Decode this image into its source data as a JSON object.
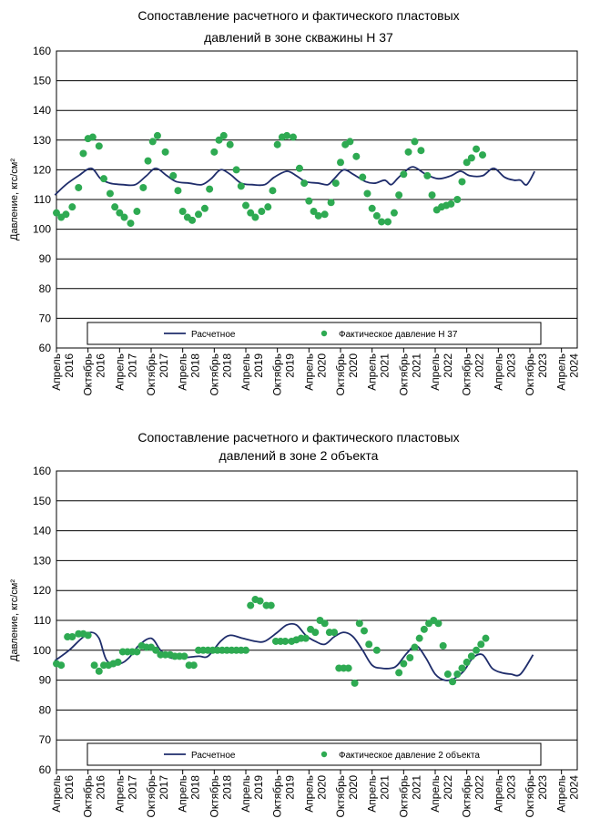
{
  "colors": {
    "line": "#1f2d6b",
    "points": "#2eaa52",
    "grid": "#000000"
  },
  "chart_data": [
    {
      "type": "line",
      "title": [
        "Сопоставление расчетного и фактического пластовых",
        "давлений в зоне скважины Н 37"
      ],
      "ylabel": "Давление, кгс/см²",
      "ylim": [
        60,
        160
      ],
      "yticks": [
        60,
        70,
        80,
        90,
        100,
        110,
        120,
        130,
        140,
        150,
        160
      ],
      "grid": true,
      "legend_position": "bottom",
      "xlim": [
        0,
        16.5
      ],
      "xticks": [
        {
          "x": 0,
          "label": [
            "Апрель",
            "2016"
          ]
        },
        {
          "x": 1,
          "label": [
            "Октябрь",
            "2016"
          ]
        },
        {
          "x": 2,
          "label": [
            "Апрель",
            "2017"
          ]
        },
        {
          "x": 3,
          "label": [
            "Октябрь",
            "2017"
          ]
        },
        {
          "x": 4,
          "label": [
            "Апрель",
            "2018"
          ]
        },
        {
          "x": 5,
          "label": [
            "Октябрь",
            "2018"
          ]
        },
        {
          "x": 6,
          "label": [
            "Апрель",
            "2019"
          ]
        },
        {
          "x": 7,
          "label": [
            "Октябрь",
            "2019"
          ]
        },
        {
          "x": 8,
          "label": [
            "Апрель",
            "2020"
          ]
        },
        {
          "x": 9,
          "label": [
            "Октябрь",
            "2020"
          ]
        },
        {
          "x": 10,
          "label": [
            "Апрель",
            "2021"
          ]
        },
        {
          "x": 11,
          "label": [
            "Октябрь",
            "2021"
          ]
        },
        {
          "x": 12,
          "label": [
            "Апрель",
            "2022"
          ]
        },
        {
          "x": 13,
          "label": [
            "Октябрь",
            "2022"
          ]
        },
        {
          "x": 14,
          "label": [
            "Апрель",
            "2023"
          ]
        },
        {
          "x": 15,
          "label": [
            "Октябрь",
            "2023"
          ]
        },
        {
          "x": 16,
          "label": [
            "Апрель",
            "2024"
          ]
        }
      ],
      "series": [
        {
          "name": "Расчетное",
          "kind": "line",
          "x": [
            -0.05,
            0.3,
            0.7,
            1.1,
            1.4,
            1.7,
            2.1,
            2.5,
            2.85,
            3.15,
            3.5,
            3.8,
            4.2,
            4.6,
            4.9,
            5.2,
            5.5,
            5.85,
            6.2,
            6.6,
            6.9,
            7.3,
            7.6,
            7.9,
            8.3,
            8.6,
            8.8,
            9.1,
            9.4,
            9.8,
            10.1,
            10.4,
            10.6,
            10.8,
            11.0,
            11.3,
            11.7,
            12.1,
            12.5,
            12.8,
            13.1,
            13.5,
            13.85,
            14.2,
            14.5,
            14.7,
            14.9,
            15.15
          ],
          "y": [
            111.5,
            115,
            118,
            120.5,
            117,
            115.5,
            115,
            115,
            118,
            120.5,
            118,
            116,
            115.5,
            115,
            117,
            120,
            118.5,
            115.5,
            115,
            115,
            117.5,
            119.5,
            118,
            116,
            115.5,
            115,
            117,
            120,
            118.5,
            116,
            115.5,
            116.5,
            115,
            117,
            119,
            121,
            118.5,
            117,
            118,
            119.5,
            118,
            118,
            120.5,
            117.5,
            116.5,
            116.5,
            115,
            119.5
          ]
        },
        {
          "name": "Фактическое давление Н 37",
          "kind": "scatter",
          "x": [
            0,
            0.15,
            0.3,
            0.5,
            0.7,
            0.85,
            1.0,
            1.15,
            1.35,
            1.5,
            1.7,
            1.85,
            2.0,
            2.15,
            2.35,
            2.55,
            2.75,
            2.9,
            3.05,
            3.2,
            3.45,
            3.7,
            3.85,
            4.0,
            4.15,
            4.3,
            4.5,
            4.7,
            4.85,
            5.0,
            5.15,
            5.3,
            5.5,
            5.7,
            5.85,
            6.0,
            6.15,
            6.3,
            6.5,
            6.7,
            6.85,
            7.0,
            7.15,
            7.3,
            7.5,
            7.7,
            7.85,
            8.0,
            8.15,
            8.3,
            8.5,
            8.7,
            8.85,
            9.0,
            9.15,
            9.3,
            9.5,
            9.7,
            9.85,
            10.0,
            10.15,
            10.3,
            10.5,
            10.7,
            10.85,
            11.0,
            11.15,
            11.35,
            11.55,
            11.75,
            11.9,
            12.05,
            12.2,
            12.35,
            12.5,
            12.7,
            12.85,
            13.0,
            13.15,
            13.3,
            13.5
          ],
          "y": [
            105.5,
            104,
            105,
            107.5,
            114,
            125.5,
            130.5,
            131,
            128,
            117,
            112,
            107.5,
            105.5,
            104,
            102,
            106,
            114,
            123,
            129.5,
            131.5,
            126,
            118,
            113,
            106,
            104,
            103,
            105,
            107,
            113.5,
            126,
            130,
            131.5,
            128.5,
            120,
            114.5,
            108,
            105.5,
            104,
            106,
            107.5,
            113,
            128.5,
            131,
            131.5,
            131,
            120.5,
            115.5,
            109.5,
            106,
            104.5,
            105,
            109,
            115.5,
            122.5,
            128.5,
            129.5,
            124.5,
            117.5,
            112,
            107,
            104.5,
            102.5,
            102.5,
            105.5,
            111.5,
            118.5,
            126,
            129.5,
            126.5,
            118,
            111.5,
            106.5,
            107.5,
            108,
            108.5,
            110,
            116,
            122.5,
            124,
            127,
            125
          ]
        }
      ]
    },
    {
      "type": "line",
      "title": [
        "Сопоставление расчетного и фактического пластовых",
        "давлений в зоне 2 объекта"
      ],
      "ylabel": "Давление, кгс/см²",
      "ylim": [
        60,
        160
      ],
      "yticks": [
        60,
        70,
        80,
        90,
        100,
        110,
        120,
        130,
        140,
        150,
        160
      ],
      "grid": true,
      "legend_position": "bottom",
      "xlim": [
        0,
        16.5
      ],
      "xticks": [
        {
          "x": 0,
          "label": [
            "Апрель",
            "2016"
          ]
        },
        {
          "x": 1,
          "label": [
            "Октябрь",
            "2016"
          ]
        },
        {
          "x": 2,
          "label": [
            "Апрель",
            "2017"
          ]
        },
        {
          "x": 3,
          "label": [
            "Октябрь",
            "2017"
          ]
        },
        {
          "x": 4,
          "label": [
            "Апрель",
            "2018"
          ]
        },
        {
          "x": 5,
          "label": [
            "Октябрь",
            "2018"
          ]
        },
        {
          "x": 6,
          "label": [
            "Апрель",
            "2019"
          ]
        },
        {
          "x": 7,
          "label": [
            "Октябрь",
            "2019"
          ]
        },
        {
          "x": 8,
          "label": [
            "Апрель",
            "2020"
          ]
        },
        {
          "x": 9,
          "label": [
            "Октябрь",
            "2020"
          ]
        },
        {
          "x": 10,
          "label": [
            "Апрель",
            "2021"
          ]
        },
        {
          "x": 11,
          "label": [
            "Октябрь",
            "2021"
          ]
        },
        {
          "x": 12,
          "label": [
            "Апрель",
            "2022"
          ]
        },
        {
          "x": 13,
          "label": [
            "Октябрь",
            "2022"
          ]
        },
        {
          "x": 14,
          "label": [
            "Апрель",
            "2023"
          ]
        },
        {
          "x": 15,
          "label": [
            "Октябрь",
            "2023"
          ]
        },
        {
          "x": 16,
          "label": [
            "Апрель",
            "2024"
          ]
        }
      ],
      "series": [
        {
          "name": "Расчетное",
          "kind": "line",
          "x": [
            -0.05,
            0.4,
            0.8,
            1.1,
            1.35,
            1.6,
            2.0,
            2.3,
            2.6,
            3.0,
            3.3,
            3.6,
            4.0,
            4.5,
            4.8,
            5.2,
            5.5,
            5.9,
            6.3,
            6.6,
            7.0,
            7.3,
            7.6,
            7.9,
            8.2,
            8.5,
            8.8,
            9.1,
            9.4,
            9.7,
            10.0,
            10.3,
            10.6,
            10.8,
            11.1,
            11.4,
            11.7,
            12.0,
            12.3,
            12.6,
            12.9,
            13.2,
            13.5,
            13.8,
            14.1,
            14.4,
            14.7,
            15.1
          ],
          "y": [
            96.5,
            100,
            104,
            106,
            104,
            96.5,
            95.5,
            97.5,
            101.5,
            104,
            100,
            97.5,
            97.5,
            98,
            98,
            103,
            105,
            104,
            103,
            103,
            106,
            108.5,
            108.5,
            105,
            103,
            102,
            104.5,
            106,
            104.5,
            100,
            95,
            94,
            94,
            95,
            99,
            101.5,
            97.5,
            92,
            90,
            90.5,
            93,
            97.5,
            98.5,
            94,
            92.5,
            92,
            92,
            98.5
          ]
        },
        {
          "name": "Фактическое давление 2 объекта",
          "kind": "scatter",
          "x": [
            0,
            0.15,
            0.35,
            0.5,
            0.7,
            0.85,
            1.0,
            1.2,
            1.35,
            1.5,
            1.65,
            1.8,
            1.95,
            2.1,
            2.25,
            2.4,
            2.55,
            2.7,
            2.85,
            3.0,
            3.15,
            3.3,
            3.45,
            3.6,
            3.75,
            3.9,
            4.05,
            4.2,
            4.35,
            4.5,
            4.65,
            4.8,
            4.95,
            5.1,
            5.25,
            5.4,
            5.55,
            5.7,
            5.85,
            6.0,
            6.15,
            6.3,
            6.45,
            6.65,
            6.8,
            6.95,
            7.1,
            7.25,
            7.45,
            7.6,
            7.75,
            7.9,
            8.05,
            8.2,
            8.35,
            8.5,
            8.65,
            8.8,
            8.95,
            9.1,
            9.25,
            9.45,
            9.6,
            9.75,
            9.9,
            10.15,
            10.85,
            11.0,
            11.2,
            11.35,
            11.5,
            11.65,
            11.8,
            11.95,
            12.1,
            12.25,
            12.4,
            12.55,
            12.7,
            12.85,
            13.0,
            13.15,
            13.3,
            13.45,
            13.6
          ],
          "y": [
            95.5,
            95,
            104.5,
            104.5,
            105.5,
            105.5,
            105,
            95,
            93,
            95,
            95,
            95.5,
            96,
            99.5,
            99.5,
            99.5,
            99.5,
            101.5,
            101,
            101,
            100,
            98.5,
            98.5,
            98.5,
            98,
            98,
            98,
            95,
            95,
            100,
            100,
            100,
            100,
            100,
            100,
            100,
            100,
            100,
            100,
            100,
            115,
            117,
            116.5,
            115,
            115,
            103,
            103,
            103,
            103,
            103.5,
            104,
            104,
            107,
            106,
            110,
            109,
            106,
            106,
            94,
            94,
            94,
            89,
            109,
            106.5,
            102,
            100,
            92.5,
            95.5,
            97.5,
            101,
            104,
            107,
            109,
            110,
            109,
            101.5,
            92,
            89.5,
            92,
            94,
            96,
            98,
            100,
            102,
            104
          ]
        }
      ]
    }
  ]
}
